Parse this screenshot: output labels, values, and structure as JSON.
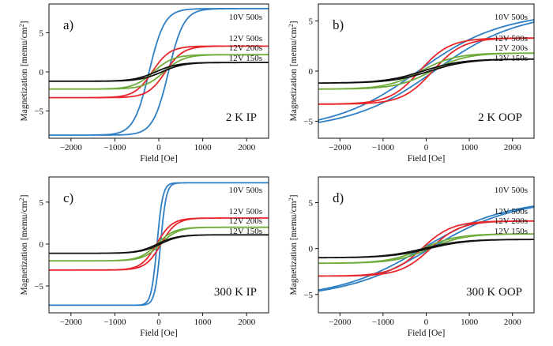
{
  "figure": {
    "type": "grid",
    "rows": 2,
    "cols": 2
  },
  "chart_data": [
    {
      "type": "line",
      "panel_label": "a)",
      "condition": "2 K IP",
      "xlabel": "Field [Oe]",
      "ylabel": "Magnetization [memu/cm²]",
      "xlim": [
        -2500,
        2500
      ],
      "ylim": [
        -8.5,
        8.7
      ],
      "xticks": [
        -2000,
        -1000,
        0,
        1000,
        2000
      ],
      "yticks": [
        -5,
        0,
        5
      ],
      "series": [
        {
          "name": "10V 500s",
          "color": "#2e7fc4",
          "ms": 8.1,
          "hc": 220,
          "w": 350,
          "slope": 0
        },
        {
          "name": "12V 500s",
          "color": "#e8272c",
          "ms": 3.3,
          "hc": 150,
          "w": 400,
          "slope": 0
        },
        {
          "name": "12V 200s",
          "color": "#6fac3c",
          "ms": 2.2,
          "hc": 120,
          "w": 450,
          "slope": 0
        },
        {
          "name": "12V 150s",
          "color": "#111111",
          "ms": 1.2,
          "hc": 70,
          "w": 500,
          "slope": 0
        }
      ]
    },
    {
      "type": "line",
      "panel_label": "b)",
      "condition": "2 K OOP",
      "xlabel": "Field [Oe]",
      "ylabel": "Magnetization [memu/cm²]",
      "xlim": [
        -2500,
        2500
      ],
      "ylim": [
        -6.7,
        6.7
      ],
      "xticks": [
        -2000,
        -1000,
        0,
        1000,
        2000
      ],
      "yticks": [
        -5,
        0,
        5
      ],
      "series": [
        {
          "name": "10V 500s",
          "color": "#2e7fc4",
          "ms": 5.0,
          "hc": 200,
          "w": 1800,
          "slope": 0.0004
        },
        {
          "name": "12V 500s",
          "color": "#e8272c",
          "ms": 3.3,
          "hc": 150,
          "w": 700,
          "slope": 0
        },
        {
          "name": "12V 200s",
          "color": "#6fac3c",
          "ms": 1.8,
          "hc": 120,
          "w": 800,
          "slope": 0
        },
        {
          "name": "12V 150s",
          "color": "#111111",
          "ms": 1.2,
          "hc": 80,
          "w": 900,
          "slope": 0
        }
      ]
    },
    {
      "type": "line",
      "panel_label": "c)",
      "condition": "300 K IP",
      "xlabel": "Field [Oe]",
      "ylabel": "Magnetization [memu/cm²]",
      "xlim": [
        -2500,
        2500
      ],
      "ylim": [
        -8.2,
        8.0
      ],
      "xticks": [
        -2000,
        -1000,
        0,
        1000,
        2000
      ],
      "yticks": [
        -5,
        0,
        5
      ],
      "series": [
        {
          "name": "10V 500s",
          "color": "#2e7fc4",
          "ms": 7.3,
          "hc": 40,
          "w": 130,
          "slope": 0
        },
        {
          "name": "12V 500s",
          "color": "#e8272c",
          "ms": 3.1,
          "hc": 50,
          "w": 350,
          "slope": 0
        },
        {
          "name": "12V 200s",
          "color": "#6fac3c",
          "ms": 2.0,
          "hc": 40,
          "w": 400,
          "slope": 0
        },
        {
          "name": "12V 150s",
          "color": "#111111",
          "ms": 1.1,
          "hc": 30,
          "w": 450,
          "slope": 0
        }
      ]
    },
    {
      "type": "line",
      "panel_label": "d)",
      "condition": "300 K OOP",
      "xlabel": "Field [Oe]",
      "ylabel": "Magnetization [memu/cm²]",
      "xlim": [
        -2500,
        2500
      ],
      "ylim": [
        -7.0,
        7.8
      ],
      "xticks": [
        -2000,
        -1000,
        0,
        1000,
        2000
      ],
      "yticks": [
        -5,
        0,
        5
      ],
      "series": [
        {
          "name": "10V 500s",
          "color": "#2e7fc4",
          "ms": 4.5,
          "hc": 100,
          "w": 1800,
          "slope": 0.0004
        },
        {
          "name": "12V 500s",
          "color": "#e8272c",
          "ms": 3.0,
          "hc": 100,
          "w": 700,
          "slope": 0
        },
        {
          "name": "12V 200s",
          "color": "#6fac3c",
          "ms": 1.6,
          "hc": 80,
          "w": 800,
          "slope": 0
        },
        {
          "name": "12V 150s",
          "color": "#111111",
          "ms": 1.0,
          "hc": 60,
          "w": 900,
          "slope": 0
        }
      ]
    }
  ]
}
